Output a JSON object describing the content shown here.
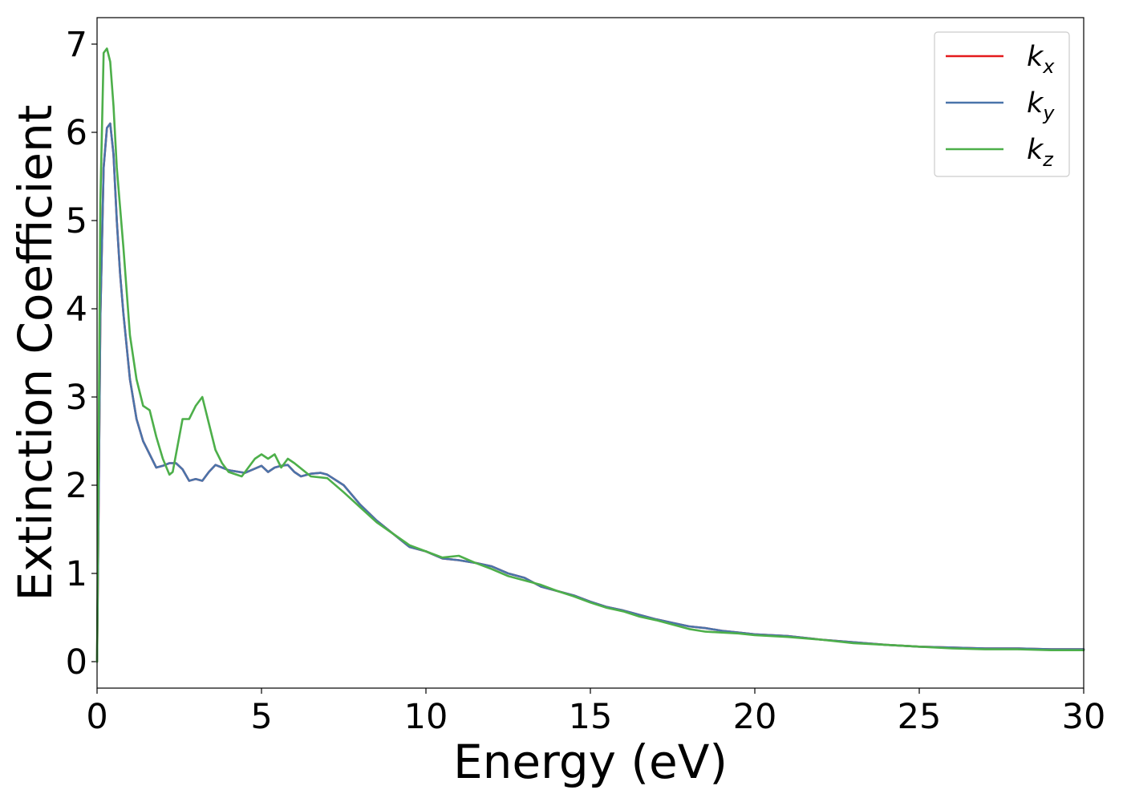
{
  "chart_data": {
    "type": "line",
    "xlabel": "Energy (eV)",
    "ylabel": "Extinction Coefficient",
    "xlim": [
      0,
      30
    ],
    "ylim": [
      -0.3,
      7.3
    ],
    "xticks": [
      0,
      5,
      10,
      15,
      20,
      25,
      30
    ],
    "yticks": [
      0,
      1,
      2,
      3,
      4,
      5,
      6,
      7
    ],
    "grid": false,
    "legend_position": "top-right",
    "series": [
      {
        "name": "k_x",
        "label_main": "k",
        "label_sub": "x",
        "color": "#e41a1c",
        "x": [
          0,
          0.05,
          0.1,
          0.2,
          0.3,
          0.4,
          0.5,
          0.6,
          0.7,
          0.8,
          1.0,
          1.2,
          1.4,
          1.6,
          1.8,
          2.0,
          2.2,
          2.4,
          2.6,
          2.8,
          3.0,
          3.2,
          3.4,
          3.6,
          3.8,
          4.0,
          4.5,
          5.0,
          5.2,
          5.4,
          5.6,
          5.8,
          6.0,
          6.2,
          6.5,
          6.8,
          7.0,
          7.5,
          8.0,
          8.5,
          9.0,
          9.5,
          10.0,
          10.5,
          11.0,
          11.5,
          12.0,
          12.5,
          13.0,
          13.5,
          14.0,
          14.5,
          15.0,
          15.5,
          16.0,
          16.5,
          17.0,
          17.5,
          18.0,
          18.5,
          19.0,
          19.5,
          20.0,
          21.0,
          22.0,
          23.0,
          24.0,
          25.0,
          26.0,
          27.0,
          28.0,
          29.0,
          30.0
        ],
        "values": [
          0,
          1.8,
          3.9,
          5.6,
          6.05,
          6.1,
          5.75,
          5.0,
          4.4,
          3.95,
          3.2,
          2.75,
          2.5,
          2.35,
          2.2,
          2.22,
          2.25,
          2.25,
          2.18,
          2.05,
          2.07,
          2.05,
          2.15,
          2.23,
          2.2,
          2.17,
          2.14,
          2.22,
          2.15,
          2.2,
          2.22,
          2.23,
          2.15,
          2.1,
          2.13,
          2.14,
          2.12,
          2.0,
          1.78,
          1.6,
          1.45,
          1.3,
          1.25,
          1.17,
          1.15,
          1.12,
          1.08,
          1.0,
          0.95,
          0.85,
          0.8,
          0.75,
          0.68,
          0.62,
          0.58,
          0.53,
          0.48,
          0.44,
          0.4,
          0.38,
          0.35,
          0.33,
          0.31,
          0.29,
          0.25,
          0.22,
          0.19,
          0.17,
          0.16,
          0.15,
          0.15,
          0.14,
          0.14
        ]
      },
      {
        "name": "k_y",
        "label_main": "k",
        "label_sub": "y",
        "color": "#4a74aa",
        "x": [
          0,
          0.05,
          0.1,
          0.2,
          0.3,
          0.4,
          0.5,
          0.6,
          0.7,
          0.8,
          1.0,
          1.2,
          1.4,
          1.6,
          1.8,
          2.0,
          2.2,
          2.4,
          2.6,
          2.8,
          3.0,
          3.2,
          3.4,
          3.6,
          3.8,
          4.0,
          4.5,
          5.0,
          5.2,
          5.4,
          5.6,
          5.8,
          6.0,
          6.2,
          6.5,
          6.8,
          7.0,
          7.5,
          8.0,
          8.5,
          9.0,
          9.5,
          10.0,
          10.5,
          11.0,
          11.5,
          12.0,
          12.5,
          13.0,
          13.5,
          14.0,
          14.5,
          15.0,
          15.5,
          16.0,
          16.5,
          17.0,
          17.5,
          18.0,
          18.5,
          19.0,
          19.5,
          20.0,
          21.0,
          22.0,
          23.0,
          24.0,
          25.0,
          26.0,
          27.0,
          28.0,
          29.0,
          30.0
        ],
        "values": [
          0,
          1.8,
          3.9,
          5.6,
          6.05,
          6.1,
          5.75,
          5.0,
          4.4,
          3.95,
          3.2,
          2.75,
          2.5,
          2.35,
          2.2,
          2.22,
          2.25,
          2.25,
          2.18,
          2.05,
          2.07,
          2.05,
          2.15,
          2.23,
          2.2,
          2.17,
          2.14,
          2.22,
          2.15,
          2.2,
          2.22,
          2.23,
          2.15,
          2.1,
          2.13,
          2.14,
          2.12,
          2.0,
          1.78,
          1.6,
          1.45,
          1.3,
          1.25,
          1.17,
          1.15,
          1.12,
          1.08,
          1.0,
          0.95,
          0.85,
          0.8,
          0.75,
          0.68,
          0.62,
          0.58,
          0.53,
          0.48,
          0.44,
          0.4,
          0.38,
          0.35,
          0.33,
          0.31,
          0.29,
          0.25,
          0.22,
          0.19,
          0.17,
          0.16,
          0.15,
          0.15,
          0.14,
          0.14
        ]
      },
      {
        "name": "k_z",
        "label_main": "k",
        "label_sub": "z",
        "color": "#4daf4a",
        "x": [
          0,
          0.05,
          0.1,
          0.2,
          0.3,
          0.4,
          0.5,
          0.6,
          0.8,
          1.0,
          1.2,
          1.4,
          1.6,
          1.8,
          2.0,
          2.2,
          2.3,
          2.4,
          2.6,
          2.8,
          3.0,
          3.2,
          3.4,
          3.6,
          3.8,
          4.0,
          4.4,
          4.8,
          5.0,
          5.2,
          5.4,
          5.6,
          5.8,
          6.0,
          6.5,
          7.0,
          7.5,
          8.0,
          8.5,
          9.0,
          9.5,
          10.0,
          10.5,
          11.0,
          11.5,
          12.0,
          12.5,
          13.0,
          13.5,
          14.0,
          14.5,
          15.0,
          15.5,
          16.0,
          16.5,
          17.0,
          17.5,
          18.0,
          18.5,
          19.0,
          19.5,
          20.0,
          21.0,
          22.0,
          23.0,
          24.0,
          25.0,
          26.0,
          27.0,
          28.0,
          29.0,
          30.0
        ],
        "values": [
          0,
          2.5,
          5.2,
          6.9,
          6.95,
          6.8,
          6.3,
          5.6,
          4.7,
          3.7,
          3.2,
          2.9,
          2.85,
          2.55,
          2.3,
          2.12,
          2.15,
          2.35,
          2.75,
          2.75,
          2.9,
          3.0,
          2.7,
          2.4,
          2.25,
          2.15,
          2.1,
          2.3,
          2.35,
          2.3,
          2.35,
          2.2,
          2.3,
          2.25,
          2.1,
          2.08,
          1.92,
          1.75,
          1.58,
          1.45,
          1.32,
          1.25,
          1.18,
          1.2,
          1.12,
          1.05,
          0.97,
          0.92,
          0.87,
          0.8,
          0.74,
          0.67,
          0.61,
          0.57,
          0.51,
          0.47,
          0.42,
          0.37,
          0.34,
          0.33,
          0.32,
          0.3,
          0.28,
          0.25,
          0.21,
          0.19,
          0.17,
          0.15,
          0.14,
          0.14,
          0.13,
          0.13
        ]
      }
    ]
  }
}
